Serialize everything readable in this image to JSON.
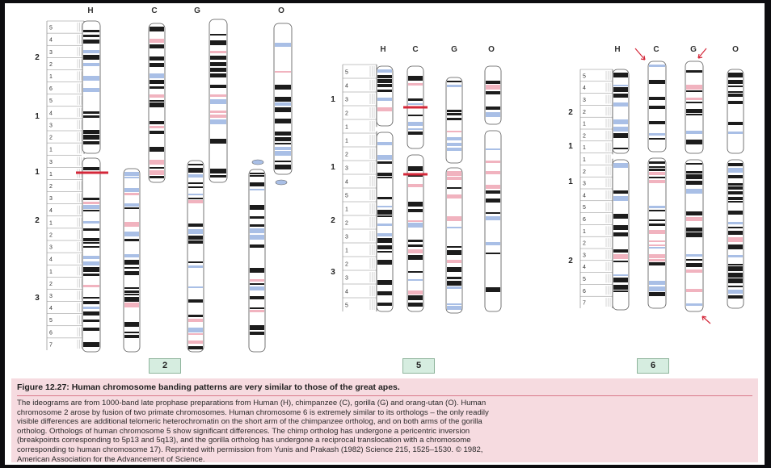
{
  "figure": {
    "panels": [
      {
        "id": "2",
        "label": "2",
        "column_labels": [
          "H",
          "C",
          "G",
          "O"
        ],
        "human_arm_numbers": [
          "2",
          "1",
          "1",
          "2",
          "3"
        ],
        "human_band_numbers": [
          "5",
          "4",
          "3",
          "2",
          "1",
          "6",
          "5",
          "4",
          "3",
          "2",
          "1",
          "3",
          "1",
          "2",
          "3",
          "4",
          "1",
          "2",
          "3",
          "4",
          "1",
          "2",
          "3",
          "4",
          "5",
          "6",
          "7"
        ]
      },
      {
        "id": "5",
        "label": "5",
        "column_labels": [
          "H",
          "C",
          "G",
          "O"
        ],
        "human_arm_numbers": [
          "1",
          "1",
          "2",
          "3"
        ],
        "human_band_numbers": [
          "5",
          "4",
          "3",
          "2",
          "1",
          "1",
          "2",
          "3",
          "4",
          "5",
          "1",
          "2",
          "3",
          "1",
          "2",
          "3",
          "4",
          "5"
        ]
      },
      {
        "id": "6",
        "label": "6",
        "column_labels": [
          "H",
          "C",
          "G",
          "O"
        ],
        "human_arm_numbers": [
          "2",
          "1",
          "1",
          "2"
        ],
        "human_band_numbers": [
          "5",
          "4",
          "3",
          "2",
          "1",
          "2",
          "1",
          "1",
          "2",
          "3",
          "4",
          "5",
          "6",
          "1",
          "2",
          "3",
          "4",
          "5",
          "6",
          "7"
        ]
      }
    ],
    "colors": {
      "band_black": "#1c1c1c",
      "band_blue": "#a9bfe6",
      "band_pink": "#f1b3bf",
      "marker_red": "#d4283a",
      "panel_box": "#d6ede0"
    }
  },
  "caption": {
    "title": "Figure 12.27: Human chromosome banding patterns are very similar to those of the great apes.",
    "body": [
      "The ideograms are from 1000-band late prophase preparations from Human (H), chimpanzee (C), gorilla (G) and orang-utan (O). Human",
      "chromosome 2 arose by fusion of two primate chromosomes. Human chromosome 6 is extremely similar to its orthologs – the only readily",
      "visible differences are additional telomeric heterochromatin on the short arm of the chimpanzee ortholog, and on both arms of the gorilla",
      "ortholog. Orthologs of human chromosome 5 show significant differences. The chimp ortholog has undergone a pericentric inversion",
      "(breakpoints corresponding to 5p13 and 5q13), and the gorilla ortholog has undergone a reciprocal translocation with a chromosome",
      "corresponding to human chromosome 17). Reprinted with permission from Yunis and Prakash (1982) Science 215, 1525–1530. © 1982,",
      "American Association for the Advancement of Science."
    ]
  }
}
